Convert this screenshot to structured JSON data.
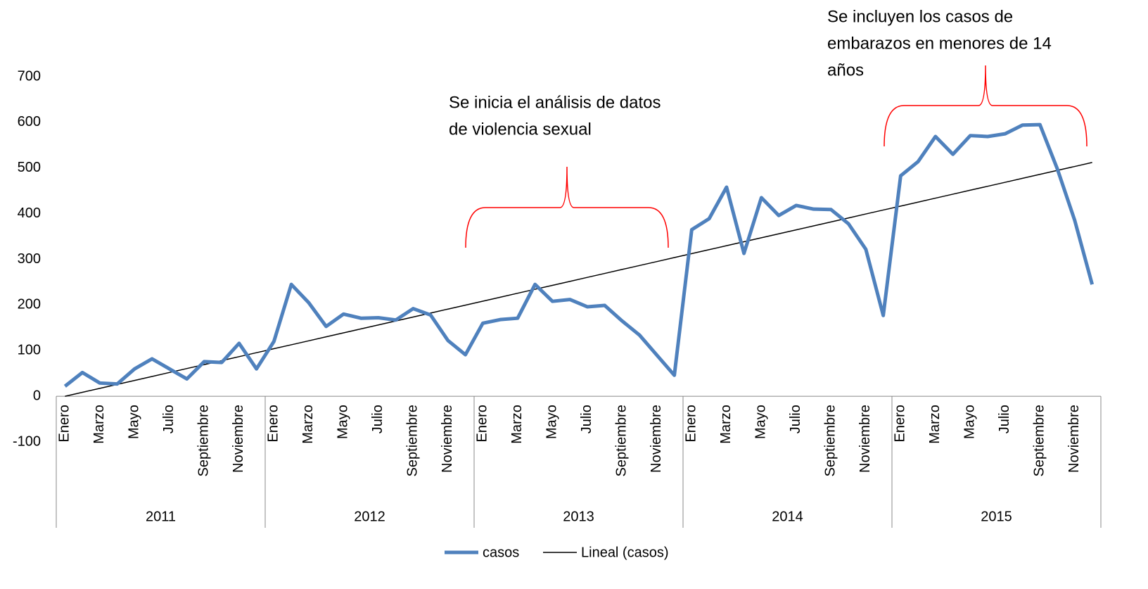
{
  "chart_data": {
    "type": "line",
    "categories": [
      "Enero",
      null,
      "Marzo",
      null,
      "Mayo",
      null,
      "Julio",
      null,
      "Septiembre",
      null,
      "Noviembre",
      null,
      "Enero",
      null,
      "Marzo",
      null,
      "Mayo",
      null,
      "Julio",
      null,
      "Septiembre",
      null,
      "Noviembre",
      null,
      "Enero",
      null,
      "Marzo",
      null,
      "Mayo",
      null,
      "Julio",
      null,
      "Septiembre",
      null,
      "Noviembre",
      null,
      "Enero",
      null,
      "Marzo",
      null,
      "Mayo",
      null,
      "Julio",
      null,
      "Septiembre",
      null,
      "Noviembre",
      null,
      "Enero",
      null,
      "Marzo",
      null,
      "Mayo",
      null,
      "Julio",
      null,
      "Septiembre",
      null,
      "Noviembre",
      null
    ],
    "x_groups": [
      "2011",
      "2012",
      "2013",
      "2014",
      "2015"
    ],
    "series": [
      {
        "name": "casos",
        "color": "#4f81bd",
        "width": 5,
        "values": [
          22,
          52,
          29,
          27,
          60,
          82,
          60,
          38,
          76,
          74,
          116,
          60,
          120,
          245,
          205,
          153,
          180,
          171,
          172,
          167,
          192,
          178,
          122,
          91,
          160,
          168,
          171,
          245,
          208,
          212,
          196,
          199,
          165,
          134,
          90,
          46,
          365,
          389,
          458,
          313,
          435,
          396,
          418,
          410,
          409,
          378,
          322,
          177,
          483,
          514,
          569,
          530,
          571,
          569,
          575,
          594,
          595,
          498,
          385,
          245
        ]
      },
      {
        "name": "Lineal (casos)",
        "color": "#000000",
        "width": 1.5,
        "values": [
          0,
          8.7,
          17.4,
          26,
          34.7,
          43.4,
          52.1,
          60.8,
          69.4,
          78.1,
          86.8,
          95.5,
          104.2,
          112.8,
          121.5,
          130.2,
          138.9,
          147.6,
          156.2,
          164.9,
          173.6,
          182.3,
          191,
          199.6,
          208.3,
          217,
          225.7,
          234.4,
          243,
          251.7,
          260.4,
          269.1,
          277.8,
          286.4,
          295.1,
          303.8,
          312.5,
          321.2,
          329.8,
          338.5,
          347.2,
          355.9,
          364.6,
          373.2,
          381.9,
          390.6,
          399.3,
          408,
          416.6,
          425.3,
          434,
          442.7,
          451.4,
          460,
          468.7,
          477.4,
          486.1,
          494.8,
          503.4,
          512.1
        ]
      }
    ],
    "ylim": [
      -100,
      700
    ],
    "yticks": [
      -100,
      0,
      100,
      200,
      300,
      400,
      500,
      600,
      700
    ],
    "grid": false,
    "legend": "bottom",
    "annotations": [
      [
        "Se inicia el análisis de datos",
        "de violencia sexual"
      ],
      [
        "Se incluyen los casos de",
        "embarazos en menores de 14",
        "años"
      ]
    ]
  }
}
